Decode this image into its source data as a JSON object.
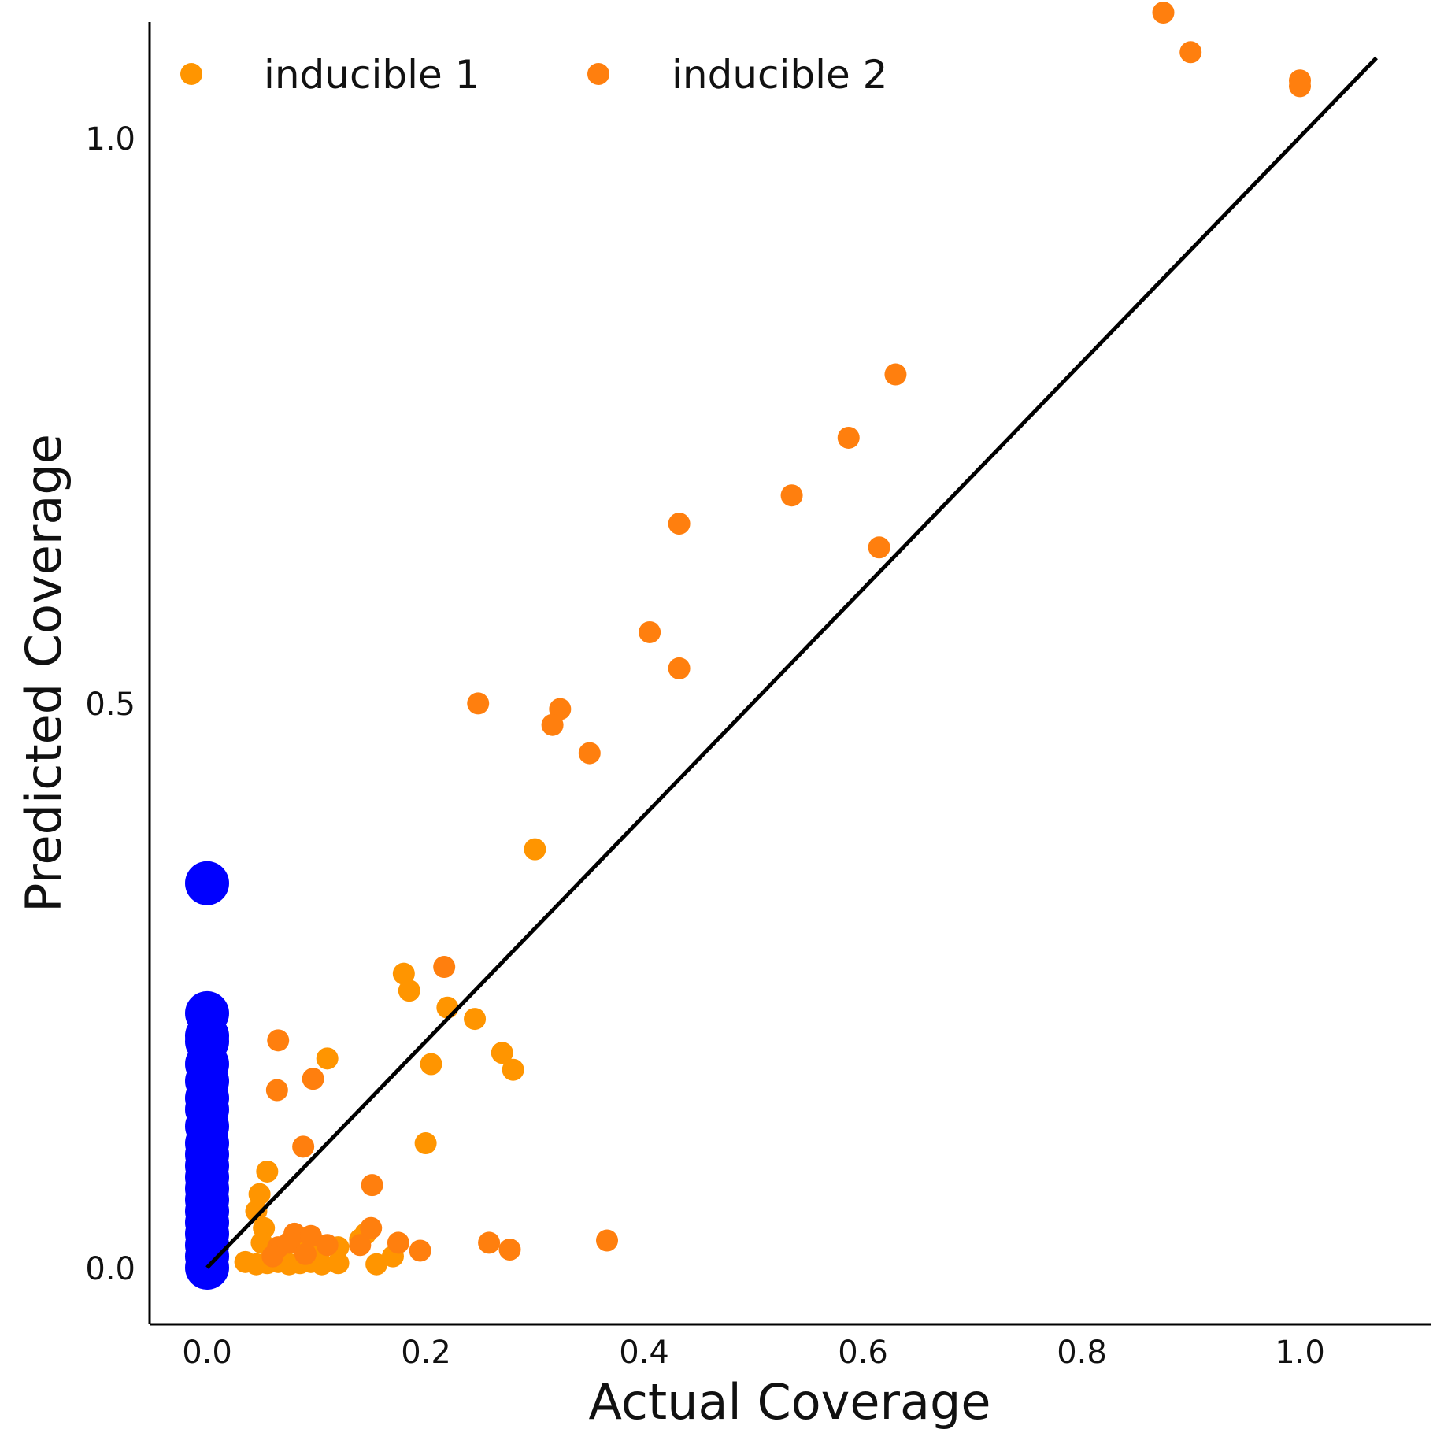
{
  "chart_data": {
    "type": "scatter",
    "xlabel": "Actual Coverage",
    "ylabel": "Predicted Coverage",
    "xlim": [
      -0.05,
      1.12
    ],
    "ylim": [
      -0.05,
      1.1
    ],
    "grid": false,
    "legend": "top-left",
    "x_ticks": [
      "0.0",
      "0.2",
      "0.4",
      "0.6",
      "0.8",
      "1.0"
    ],
    "y_ticks": [
      "0.0",
      "0.5",
      "1.0"
    ],
    "reference_line": {
      "from": [
        0.0,
        0.0
      ],
      "to": [
        1.07,
        1.07
      ],
      "color": "#000000"
    },
    "series": [
      {
        "name": "inducible 1",
        "color": "#ff9500",
        "points": [
          [
            0.3,
            0.37
          ],
          [
            0.18,
            0.26
          ],
          [
            0.185,
            0.245
          ],
          [
            0.22,
            0.23
          ],
          [
            0.245,
            0.22
          ],
          [
            0.27,
            0.19
          ],
          [
            0.205,
            0.18
          ],
          [
            0.28,
            0.175
          ],
          [
            0.11,
            0.185
          ],
          [
            0.2,
            0.11
          ],
          [
            0.055,
            0.085
          ],
          [
            0.048,
            0.065
          ],
          [
            0.045,
            0.05
          ],
          [
            0.052,
            0.035
          ],
          [
            0.05,
            0.022
          ],
          [
            0.06,
            0.015
          ],
          [
            0.07,
            0.018
          ],
          [
            0.085,
            0.02
          ],
          [
            0.1,
            0.02
          ],
          [
            0.12,
            0.018
          ],
          [
            0.035,
            0.005
          ],
          [
            0.045,
            0.003
          ],
          [
            0.055,
            0.004
          ],
          [
            0.065,
            0.005
          ],
          [
            0.075,
            0.003
          ],
          [
            0.085,
            0.004
          ],
          [
            0.095,
            0.005
          ],
          [
            0.105,
            0.003
          ],
          [
            0.12,
            0.004
          ],
          [
            0.155,
            0.003
          ],
          [
            0.17,
            0.01
          ],
          [
            0.145,
            0.03
          ],
          [
            0.14,
            0.025
          ]
        ]
      },
      {
        "name": "inducible 2",
        "color": "#ff7f0e",
        "points": [
          [
            0.875,
            1.11
          ],
          [
            0.9,
            1.075
          ],
          [
            1.0,
            1.05
          ],
          [
            1.0,
            1.045
          ],
          [
            0.63,
            0.79
          ],
          [
            0.587,
            0.734
          ],
          [
            0.535,
            0.683
          ],
          [
            0.432,
            0.658
          ],
          [
            0.615,
            0.637
          ],
          [
            0.405,
            0.562
          ],
          [
            0.432,
            0.53
          ],
          [
            0.248,
            0.499
          ],
          [
            0.323,
            0.494
          ],
          [
            0.316,
            0.48
          ],
          [
            0.35,
            0.455
          ],
          [
            0.217,
            0.266
          ],
          [
            0.065,
            0.201
          ],
          [
            0.064,
            0.157
          ],
          [
            0.097,
            0.167
          ],
          [
            0.088,
            0.107
          ],
          [
            0.151,
            0.073
          ],
          [
            0.08,
            0.03
          ],
          [
            0.095,
            0.028
          ],
          [
            0.075,
            0.022
          ],
          [
            0.065,
            0.018
          ],
          [
            0.11,
            0.02
          ],
          [
            0.15,
            0.035
          ],
          [
            0.175,
            0.022
          ],
          [
            0.195,
            0.015
          ],
          [
            0.258,
            0.022
          ],
          [
            0.277,
            0.016
          ],
          [
            0.366,
            0.024
          ],
          [
            0.06,
            0.01
          ],
          [
            0.09,
            0.012
          ],
          [
            0.14,
            0.02
          ]
        ]
      },
      {
        "name": "",
        "color": "#0000ff",
        "points": [
          [
            0.0,
            0.34
          ],
          [
            0.0,
            0.225
          ],
          [
            0.0,
            0.205
          ],
          [
            0.0,
            0.2
          ],
          [
            0.0,
            0.18
          ],
          [
            0.0,
            0.165
          ],
          [
            0.0,
            0.15
          ],
          [
            0.0,
            0.14
          ],
          [
            0.0,
            0.125
          ],
          [
            0.0,
            0.11
          ],
          [
            0.0,
            0.1
          ],
          [
            0.0,
            0.09
          ],
          [
            0.0,
            0.08
          ],
          [
            0.0,
            0.07
          ],
          [
            0.0,
            0.06
          ],
          [
            0.0,
            0.05
          ],
          [
            0.0,
            0.04
          ],
          [
            0.0,
            0.03
          ],
          [
            0.0,
            0.02
          ],
          [
            0.0,
            0.01
          ],
          [
            0.0,
            0.0
          ]
        ]
      }
    ]
  }
}
